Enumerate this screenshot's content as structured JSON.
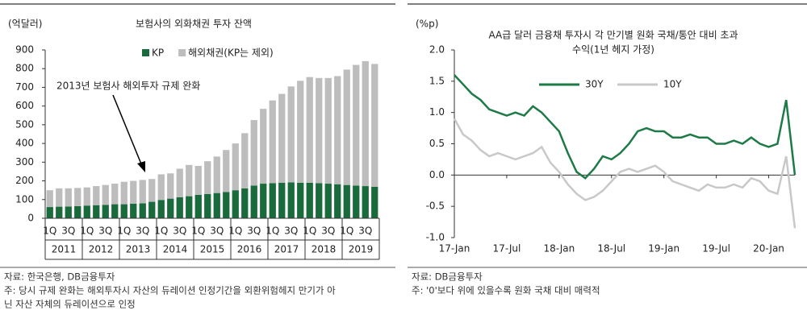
{
  "chart_data": [
    {
      "type": "stacked-bar",
      "title": "보험사의 외화채권 투자 잔액",
      "y_label": "(억달러)",
      "annotation": "2013년 보험사 해외투자 규제 완화",
      "categories": [
        "1Q",
        null,
        "3Q",
        null,
        "1Q",
        null,
        "3Q",
        null,
        "1Q",
        null,
        "3Q",
        null,
        "1Q",
        null,
        "3Q",
        null,
        "1Q",
        null,
        "3Q",
        null,
        "1Q",
        null,
        "3Q",
        null,
        "1Q",
        null,
        "3Q",
        null,
        "1Q",
        null,
        "3Q",
        null,
        "1Q",
        null,
        "3Q",
        null
      ],
      "year_groups": [
        "2011",
        "2012",
        "2013",
        "2014",
        "2015",
        "2016",
        "2017",
        "2018",
        "2019"
      ],
      "series": [
        {
          "name": "KP",
          "color": "#1a6b3c",
          "values": [
            60,
            62,
            63,
            65,
            68,
            70,
            72,
            75,
            75,
            78,
            80,
            88,
            98,
            105,
            112,
            118,
            125,
            130,
            135,
            140,
            150,
            160,
            175,
            185,
            188,
            190,
            192,
            190,
            190,
            188,
            185,
            182,
            178,
            175,
            172,
            168
          ]
        },
        {
          "name": "해외채권(KP는 제외)",
          "color": "#bdbdbd",
          "values": [
            90,
            98,
            97,
            97,
            97,
            102,
            106,
            110,
            120,
            122,
            125,
            122,
            137,
            135,
            153,
            167,
            155,
            175,
            195,
            225,
            250,
            295,
            350,
            400,
            442,
            475,
            513,
            545,
            565,
            562,
            565,
            578,
            617,
            645,
            668,
            657
          ]
        }
      ],
      "ylim": [
        0,
        900
      ],
      "yticks": [
        0,
        100,
        200,
        300,
        400,
        500,
        600,
        700,
        800,
        900
      ],
      "notes": [
        "자료: 한국은행, DB금융투자",
        "주: 당시 규제 완화는 해외투자시 자산의 듀레이션 인정기간을 외환위험헤지 만기가 아",
        "닌 자산 자체의 듀레이션으로 인정"
      ]
    },
    {
      "type": "line",
      "title": [
        "AA급 달러 금융채 투자시 각 만기별 원화 국채/통안 대비 초과",
        "수익(1년 헤지 가정)"
      ],
      "y_label": "(%p)",
      "x": [
        "17-Jan",
        "17-Feb",
        "17-Mar",
        "17-Apr",
        "17-May",
        "17-Jun",
        "17-Jul",
        "17-Aug",
        "17-Sep",
        "17-Oct",
        "17-Nov",
        "17-Dec",
        "18-Jan",
        "18-Feb",
        "18-Mar",
        "18-Apr",
        "18-May",
        "18-Jun",
        "18-Jul",
        "18-Aug",
        "18-Sep",
        "18-Oct",
        "18-Nov",
        "18-Dec",
        "19-Jan",
        "19-Feb",
        "19-Mar",
        "19-Apr",
        "19-May",
        "19-Jun",
        "19-Jul",
        "19-Aug",
        "19-Sep",
        "19-Oct",
        "19-Nov",
        "19-Dec",
        "20-Jan",
        "20-Feb",
        "20-Mar",
        "20-Apr"
      ],
      "xticks": [
        "17-Jan",
        "17-Jul",
        "18-Jan",
        "18-Jul",
        "19-Jan",
        "19-Jul",
        "20-Jan"
      ],
      "series": [
        {
          "name": "30Y",
          "color": "#1e7a46",
          "values": [
            1.6,
            1.45,
            1.3,
            1.2,
            1.05,
            1.0,
            0.95,
            1.0,
            0.95,
            1.1,
            1.0,
            0.85,
            0.7,
            0.35,
            0.05,
            -0.05,
            0.1,
            0.3,
            0.25,
            0.35,
            0.5,
            0.7,
            0.75,
            0.7,
            0.7,
            0.6,
            0.6,
            0.65,
            0.6,
            0.6,
            0.5,
            0.5,
            0.55,
            0.5,
            0.6,
            0.5,
            0.45,
            0.5,
            1.2,
            0.0
          ]
        },
        {
          "name": "10Y",
          "color": "#c8c8c8",
          "values": [
            0.9,
            0.65,
            0.55,
            0.4,
            0.3,
            0.35,
            0.3,
            0.25,
            0.3,
            0.35,
            0.45,
            0.2,
            0.05,
            -0.15,
            -0.3,
            -0.4,
            -0.35,
            -0.25,
            -0.1,
            0.05,
            0.1,
            0.05,
            0.1,
            0.15,
            0.05,
            -0.1,
            -0.15,
            -0.2,
            -0.25,
            -0.15,
            -0.2,
            -0.2,
            -0.15,
            -0.2,
            -0.05,
            -0.1,
            -0.25,
            -0.3,
            0.3,
            -0.85
          ]
        }
      ],
      "ylim": [
        -1,
        2
      ],
      "yticks": [
        {
          "value": 2,
          "label": "2.0"
        },
        1.5,
        {
          "value": 1,
          "label": "1.0"
        },
        0.5,
        {
          "value": 0,
          "label": "0.0"
        },
        -0.5,
        {
          "value": -1,
          "label": "-1.0"
        }
      ],
      "notes": [
        "자료: DB금융투자",
        "주: '0'보다 위에 있을수록 원화 국채 대비 매력적"
      ]
    }
  ]
}
